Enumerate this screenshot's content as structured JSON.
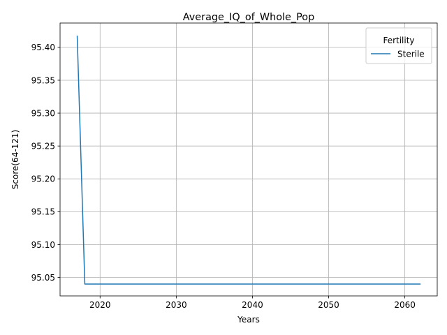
{
  "chart_data": {
    "type": "line",
    "title": "Average_IQ_of_Whole_Pop",
    "xlabel": "Years",
    "ylabel": "Score(64-121)",
    "xlim": [
      2014.75,
      2064.25
    ],
    "ylim": [
      95.022,
      95.437
    ],
    "xticks": [
      2020,
      2030,
      2040,
      2050,
      2060
    ],
    "xtick_labels": [
      "2020",
      "2030",
      "2040",
      "2050",
      "2060"
    ],
    "yticks": [
      95.05,
      95.1,
      95.15,
      95.2,
      95.25,
      95.3,
      95.35,
      95.4
    ],
    "ytick_labels": [
      "95.05",
      "95.10",
      "95.15",
      "95.20",
      "95.25",
      "95.30",
      "95.35",
      "95.40"
    ],
    "grid": true,
    "legend": {
      "title": "Fertility",
      "placement": "upper right"
    },
    "series": [
      {
        "name": "Sterile",
        "color": "#1f77b4",
        "x": [
          2017,
          2018,
          2019,
          2020,
          2021,
          2022,
          2023,
          2024,
          2025,
          2026,
          2027,
          2028,
          2029,
          2030,
          2031,
          2032,
          2033,
          2034,
          2035,
          2036,
          2037,
          2038,
          2039,
          2040,
          2041,
          2042,
          2043,
          2044,
          2045,
          2046,
          2047,
          2048,
          2049,
          2050,
          2051,
          2052,
          2053,
          2054,
          2055,
          2056,
          2057,
          2058,
          2059,
          2060,
          2061,
          2062
        ],
        "y": [
          95.417,
          95.04,
          95.04,
          95.04,
          95.04,
          95.04,
          95.04,
          95.04,
          95.04,
          95.04,
          95.04,
          95.04,
          95.04,
          95.04,
          95.04,
          95.04,
          95.04,
          95.04,
          95.04,
          95.04,
          95.04,
          95.04,
          95.04,
          95.04,
          95.04,
          95.04,
          95.04,
          95.04,
          95.04,
          95.04,
          95.04,
          95.04,
          95.04,
          95.04,
          95.04,
          95.04,
          95.04,
          95.04,
          95.04,
          95.04,
          95.04,
          95.04,
          95.04,
          95.04,
          95.04,
          95.04
        ]
      }
    ]
  }
}
